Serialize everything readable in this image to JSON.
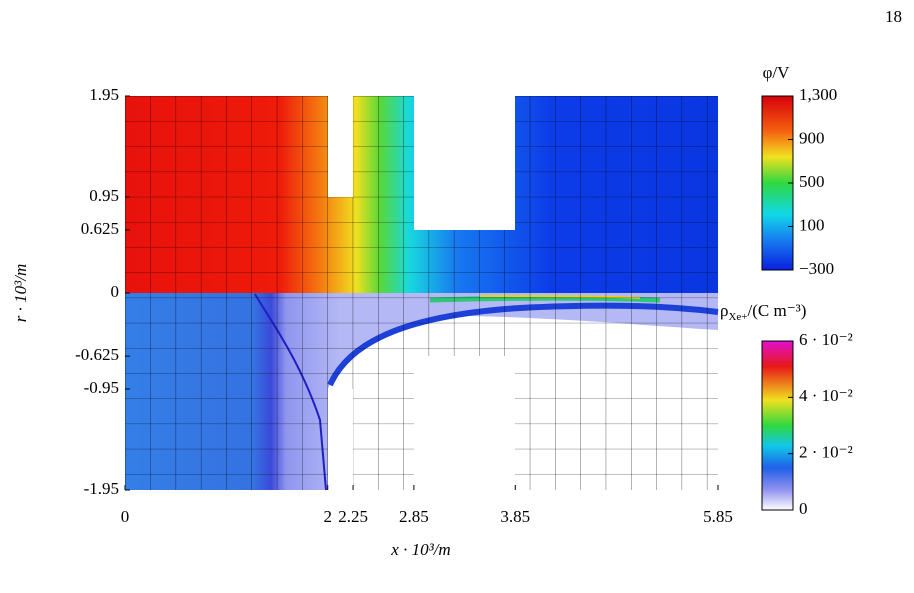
{
  "page_number": "18",
  "chart_data": {
    "type": "heatmap",
    "x_label": "x · 10³/m",
    "y_label": "r · 10³/m",
    "xlim": [
      0,
      5.85
    ],
    "ylim": [
      -1.95,
      1.95
    ],
    "xticks": [
      0,
      2,
      2.25,
      2.85,
      3.85,
      5.85
    ],
    "yticks": [
      -1.95,
      -0.95,
      -0.625,
      0,
      0.625,
      0.95,
      1.95
    ],
    "colorbars": [
      {
        "title": "φ/V",
        "clim": [
          -300,
          1300
        ],
        "ticks": [
          {
            "value": -300,
            "label": "−300"
          },
          100,
          500,
          900,
          {
            "value": 1300,
            "label": "1,300"
          }
        ]
      },
      {
        "title": "ρ",
        "title_sub": "Xe+",
        "title_rest": "/(C m⁻³)",
        "clim": [
          0,
          0.06
        ],
        "ticks": [
          0,
          {
            "value": 0.02,
            "label": "2 · 10⁻²"
          },
          {
            "value": 0.04,
            "label": "4 · 10⁻²"
          },
          {
            "value": 0.06,
            "label": "6 · 10⁻²"
          }
        ]
      }
    ]
  }
}
